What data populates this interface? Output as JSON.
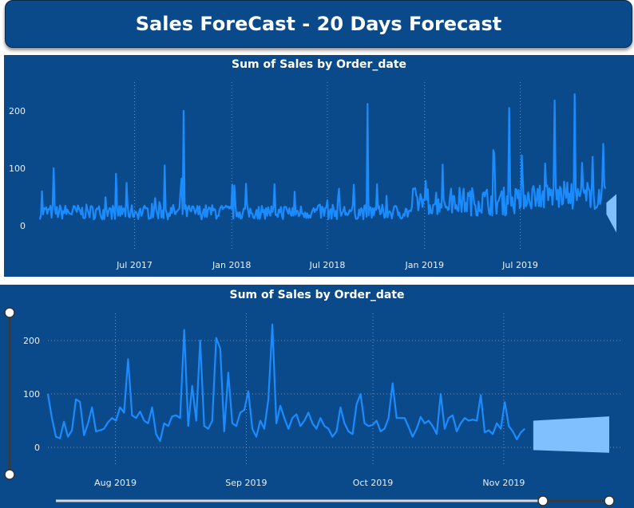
{
  "header": {
    "title": "Sales ForeCast - 20 Days Forecast"
  },
  "colors": {
    "panel": "#0b4a8a",
    "line": "#1a8cff",
    "forecast": "#80c0ff",
    "grid": "#6f93bd"
  },
  "chart_data": [
    {
      "type": "line",
      "title": "Sum of Sales by Order_date",
      "xlabel": "",
      "ylabel": "",
      "ylim": [
        -15,
        235
      ],
      "yticks": [
        0,
        100,
        200
      ],
      "xtick_labels": [
        "Jul 2017",
        "Jan 2018",
        "Jul 2018",
        "Jan 2019",
        "Jul 2019"
      ],
      "x_range": [
        "2017-01-03",
        "2019-12-30"
      ],
      "grid": true,
      "notable_spikes": [
        {
          "x": "2017-01-08",
          "y": 60
        },
        {
          "x": "2017-01-30",
          "y": 100
        },
        {
          "x": "2017-10-02",
          "y": 200
        },
        {
          "x": "2017-08-28",
          "y": 105
        },
        {
          "x": "2018-09-15",
          "y": 212
        },
        {
          "x": "2019-06-10",
          "y": 205
        },
        {
          "x": "2019-09-05",
          "y": 218
        },
        {
          "x": "2019-10-13",
          "y": 229
        },
        {
          "x": "2019-11-15",
          "y": 120
        }
      ],
      "forecast": {
        "start": "2019-12-11",
        "end": "2019-12-30",
        "upper": [
          40,
          55
        ],
        "lower": [
          20,
          -12
        ]
      }
    },
    {
      "type": "line",
      "title": "Sum of Sales by Order_date",
      "xlabel": "",
      "ylabel": "",
      "ylim": [
        -20,
        240
      ],
      "yticks": [
        0,
        100,
        200
      ],
      "xtick_labels": [
        "Aug 2019",
        "Sep 2019",
        "Oct 2019",
        "Nov 2019"
      ],
      "x_range": [
        "2019-07-16",
        "2019-11-26"
      ],
      "grid": true,
      "series": [
        {
          "values": [
            100,
            55,
            20,
            17,
            48,
            20,
            32,
            90,
            85,
            23,
            45,
            75,
            30,
            32,
            35,
            47,
            55,
            50,
            75,
            65,
            165,
            60,
            55,
            67,
            50,
            45,
            75,
            25,
            12,
            45,
            40,
            58,
            60,
            55,
            220,
            40,
            115,
            50,
            200,
            40,
            35,
            50,
            205,
            185,
            30,
            140,
            45,
            40,
            65,
            70,
            105,
            35,
            20,
            50,
            35,
            90,
            230,
            45,
            78,
            55,
            35,
            55,
            62,
            40,
            50,
            65,
            45,
            35,
            55,
            40,
            35,
            20,
            30,
            75,
            45,
            30,
            25,
            80,
            100,
            45,
            40,
            42,
            50,
            30,
            35,
            55,
            120,
            55,
            55,
            55,
            38,
            20,
            35,
            57,
            45,
            50,
            40,
            25,
            100,
            35,
            55,
            60,
            30,
            45,
            55,
            50,
            52,
            50,
            98,
            28,
            32,
            25,
            45,
            35,
            85,
            40,
            30,
            15,
            28,
            35
          ]
        }
      ],
      "forecast": {
        "start": "2019-11-08",
        "end": "2019-11-26",
        "upper": [
          50,
          58
        ],
        "lower": [
          -5,
          -10
        ]
      }
    }
  ]
}
